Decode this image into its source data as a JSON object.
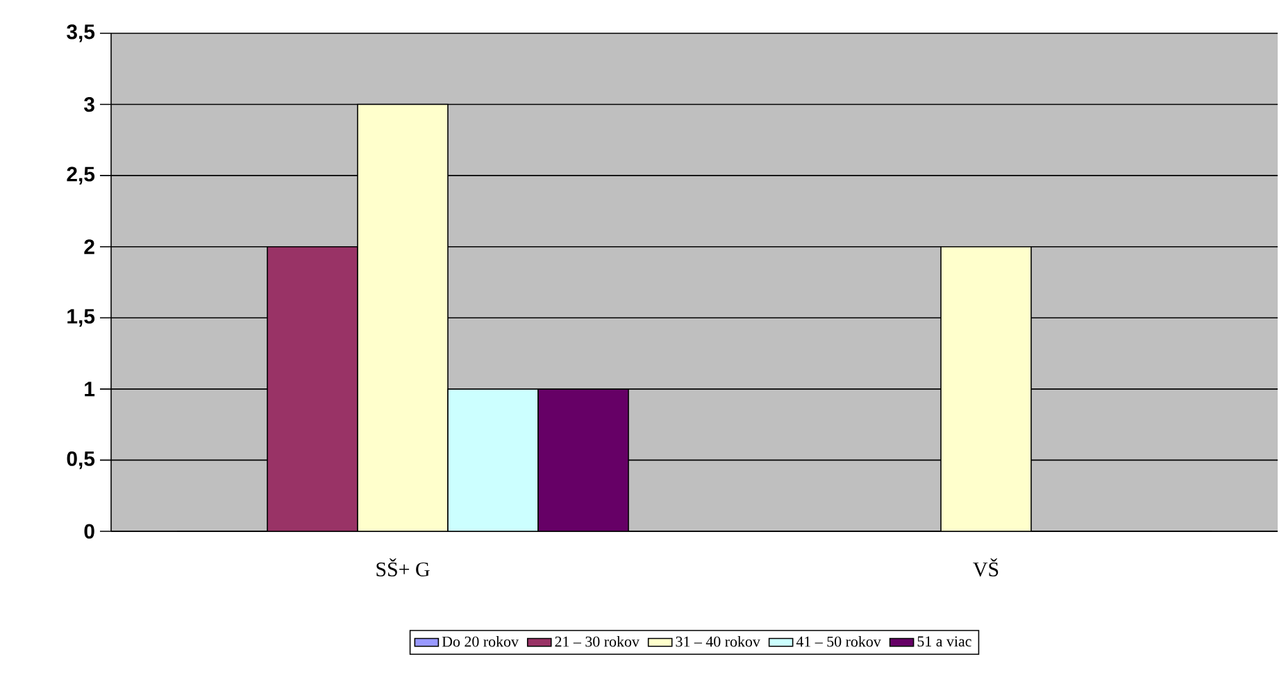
{
  "chart_data": {
    "type": "bar",
    "categories": [
      "SŠ+ G",
      "VŠ"
    ],
    "series": [
      {
        "name": "Do 20 rokov",
        "color": "#9999ff",
        "values": [
          0,
          0
        ]
      },
      {
        "name": "21 – 30  rokov",
        "color": "#993366",
        "values": [
          2,
          0
        ]
      },
      {
        "name": "31 – 40 rokov",
        "color": "#ffffcc",
        "values": [
          3,
          2
        ]
      },
      {
        "name": "41 – 50 rokov",
        "color": "#ccffff",
        "values": [
          1,
          0
        ]
      },
      {
        "name": "51 a viac",
        "color": "#660066",
        "values": [
          1,
          0
        ]
      }
    ],
    "ylim": [
      0,
      3.5
    ],
    "yticks": [
      {
        "value": 0,
        "label": "0"
      },
      {
        "value": 0.5,
        "label": "0,5"
      },
      {
        "value": 1,
        "label": "1"
      },
      {
        "value": 1.5,
        "label": "1,5"
      },
      {
        "value": 2,
        "label": "2"
      },
      {
        "value": 2.5,
        "label": "2,5"
      },
      {
        "value": 3,
        "label": "3"
      },
      {
        "value": 3.5,
        "label": "3,5"
      }
    ],
    "grid": "y",
    "legend": "bottom"
  }
}
